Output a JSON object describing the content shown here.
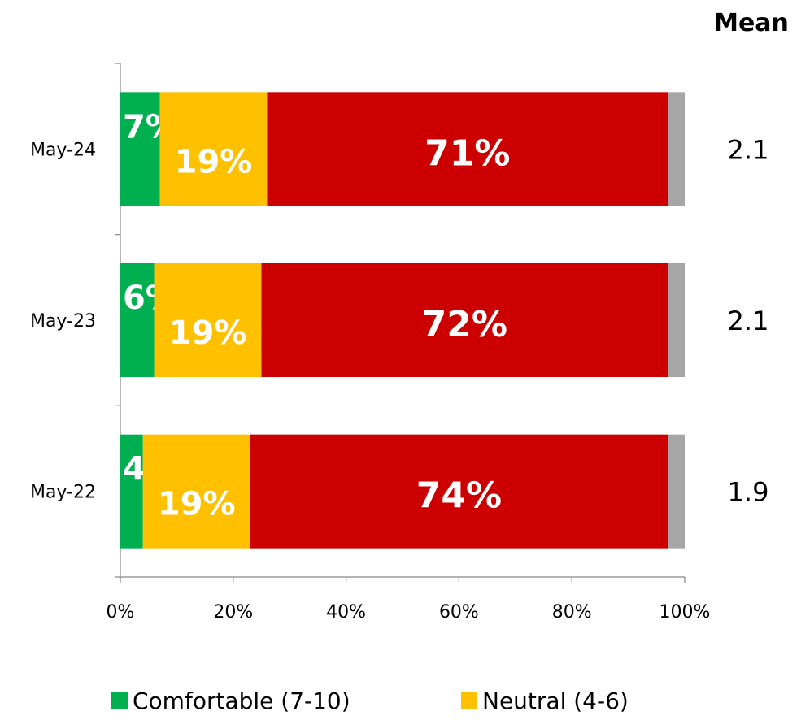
{
  "chart_data": {
    "type": "bar",
    "orientation": "horizontal",
    "stacked": true,
    "categories": [
      "May-24",
      "May-23",
      "May-22"
    ],
    "series": [
      {
        "name": "Comfortable (7-10)",
        "color": "#00b050",
        "values": [
          7,
          6,
          4
        ],
        "labels": [
          "7%",
          "6%",
          "4%"
        ]
      },
      {
        "name": "Neutral (4-6)",
        "color": "#ffc000",
        "values": [
          19,
          19,
          19
        ],
        "labels": [
          "19%",
          "19%",
          "19%"
        ]
      },
      {
        "name": "",
        "color": "#cc0000",
        "values": [
          71,
          72,
          74
        ],
        "labels": [
          "71%",
          "72%",
          "74%"
        ]
      },
      {
        "name": "",
        "color": "#a6a6a6",
        "values": [
          3,
          3,
          3
        ],
        "labels": [
          "",
          "",
          ""
        ]
      }
    ],
    "xlim": [
      0,
      100
    ],
    "xticks": [
      "0%",
      "20%",
      "40%",
      "60%",
      "80%",
      "100%"
    ],
    "mean": {
      "title": "Mean",
      "values": [
        "2.1",
        "2.1",
        "1.9"
      ]
    },
    "legend": {
      "position": "bottom",
      "entries": [
        "Comfortable (7-10)",
        "Neutral (4-6)"
      ]
    },
    "grid": false
  }
}
